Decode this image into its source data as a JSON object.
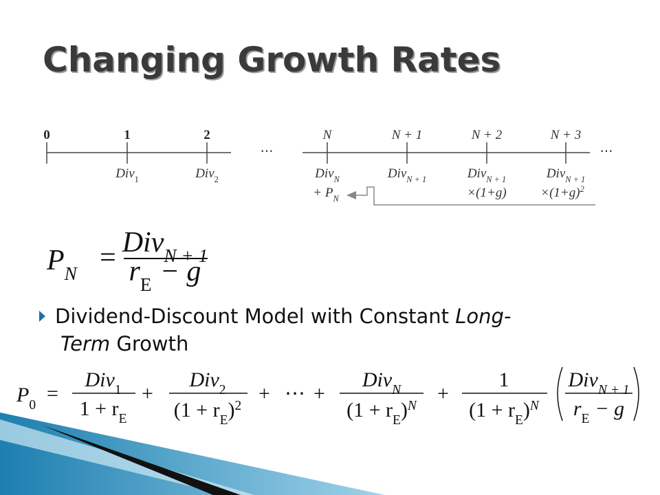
{
  "title": "Changing Growth Rates",
  "timeline": {
    "points": [
      "0",
      "1",
      "2",
      "N",
      "N + 1",
      "N + 2",
      "N + 3"
    ],
    "ellipsis": "⋯",
    "div": "Div",
    "subs": [
      "1",
      "2",
      "N",
      "N + 1",
      "N + 1",
      "N + 1"
    ],
    "plus_p": "+ P",
    "p_sub": "N",
    "growth_factor": "×(1+g)",
    "growth_exp": "2"
  },
  "formula1": {
    "lhs": "P",
    "lhs_sub": "N",
    "eq": "=",
    "num": "Div",
    "num_sub": "N + 1",
    "den_r": "r",
    "den_sub": "E",
    "den_rest": "− g"
  },
  "bullet": {
    "line1": "Dividend-Discount Model with Constant ",
    "line1_italic": "Long-",
    "line2_italic": "Term",
    "line2": " Growth"
  },
  "formula2": {
    "lhs": "P",
    "lhs_sub": "0",
    "eq": "=",
    "plus": "+",
    "dots": "⋯",
    "terms": [
      {
        "num": "Div",
        "num_sub": "1",
        "den_open": "1 + r",
        "den_sub": "E"
      },
      {
        "num": "Div",
        "num_sub": "2",
        "den_open": "(1 + r",
        "den_sub": "E",
        "den_close": ")",
        "den_exp": "2"
      },
      {
        "num": "Div",
        "num_sub": "N",
        "den_open": "(1 + r",
        "den_sub": "E",
        "den_close": ")",
        "den_exp": "N"
      },
      {
        "num": "1",
        "den_open": "(1 + r",
        "den_sub": "E",
        "den_close": ")",
        "den_exp": "N"
      }
    ],
    "final": {
      "num": "Div",
      "num_sub": "N + 1",
      "den_r": "r",
      "den_sub": "E",
      "den_rest": "− g"
    }
  }
}
